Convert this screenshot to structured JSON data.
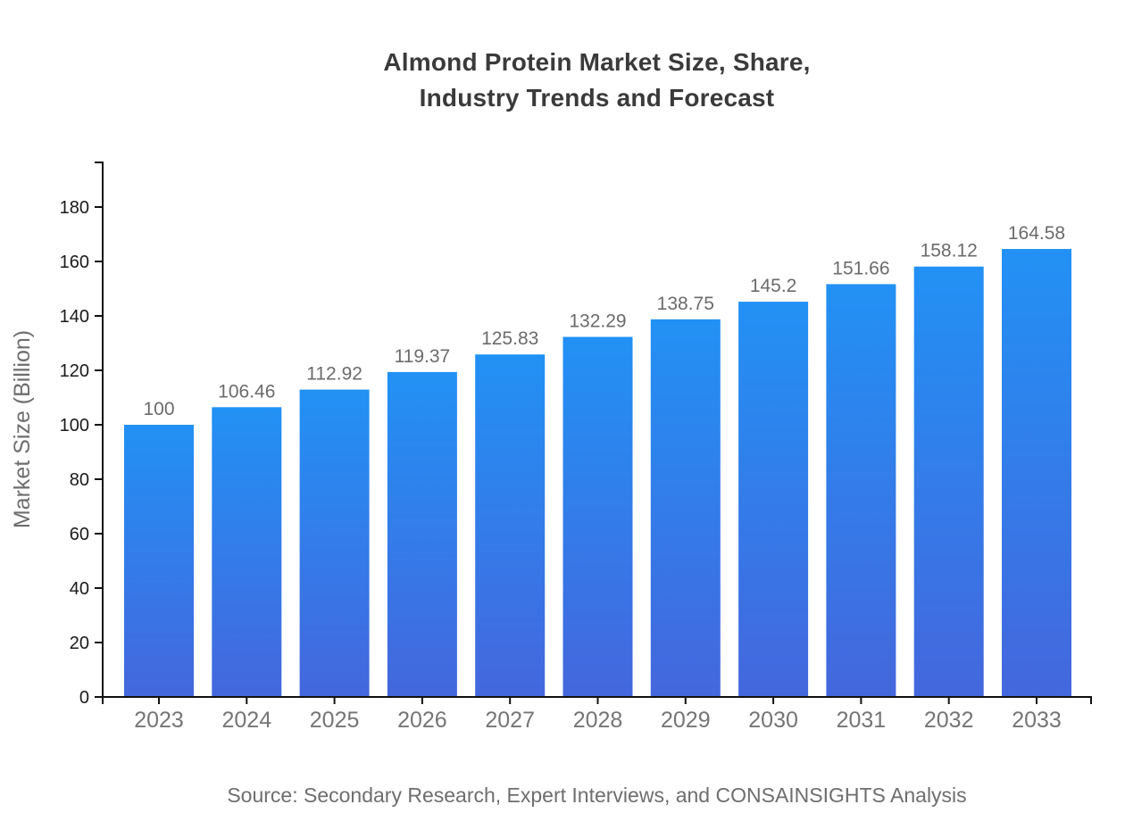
{
  "title": {
    "line1": "Almond Protein Market Size, Share,",
    "line2": "Industry Trends and Forecast"
  },
  "source_text": "Source: Secondary Research, Expert Interviews, and CONSAINSIGHTS Analysis",
  "chart_data": {
    "type": "bar",
    "title": "Almond Protein Market Size, Share, Industry Trends and Forecast",
    "categories": [
      "2023",
      "2024",
      "2025",
      "2026",
      "2027",
      "2028",
      "2029",
      "2030",
      "2031",
      "2032",
      "2033"
    ],
    "values": [
      100,
      106.46,
      112.92,
      119.37,
      125.83,
      132.29,
      138.75,
      145.2,
      151.66,
      158.12,
      164.58
    ],
    "xlabel": "",
    "ylabel": "Market Size (Billion)",
    "ylim": [
      0,
      197
    ],
    "yticks": [
      0,
      20,
      40,
      60,
      80,
      100,
      120,
      140,
      160,
      180
    ],
    "grid": false,
    "legend": false,
    "bar_color_top": "#2291f5",
    "bar_color_bottom": "#4467dd",
    "source": "Source: Secondary Research, Expert Interviews, and CONSAINSIGHTS Analysis"
  },
  "colors": {
    "background": "#ffffff",
    "title": "#3a3a3a",
    "axis": "#111111",
    "y_tick_label": "#1a1a1a",
    "x_tick_label": "#757575",
    "value_label": "#6b6b6b",
    "y_axis_label": "#6e6e6e",
    "source": "#6e6e6e"
  }
}
